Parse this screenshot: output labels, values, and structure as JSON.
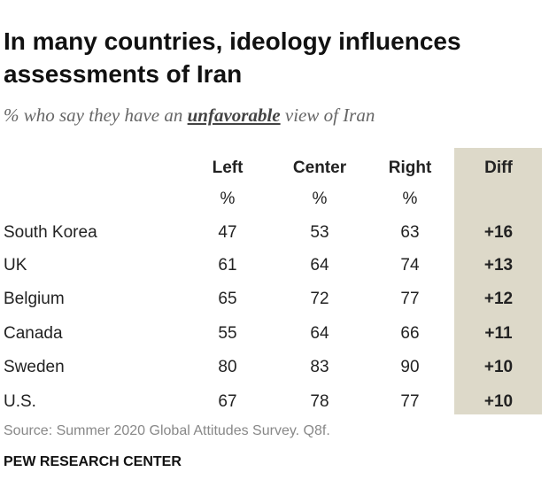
{
  "header": {
    "title": "In many countries, ideology influences assessments of Iran",
    "subtitle": {
      "before": "% who say they have an",
      "emphasis": "unfavorable",
      "after": "view of Iran"
    }
  },
  "table": {
    "columns": [
      "Left",
      "Center",
      "Right",
      "Diff"
    ],
    "units": [
      "%",
      "%",
      "%"
    ],
    "rows": [
      [
        "South Korea",
        47,
        53,
        63,
        "+16"
      ],
      [
        "UK",
        61,
        64,
        74,
        "+13"
      ],
      [
        "Belgium",
        65,
        72,
        77,
        "+12"
      ],
      [
        "Canada",
        55,
        64,
        66,
        "+11"
      ],
      [
        "Sweden",
        80,
        83,
        90,
        "+10"
      ],
      [
        "U.S.",
        67,
        78,
        77,
        "+10"
      ]
    ]
  },
  "footer": {
    "source": "Source: Summer 2020 Global Attitudes Survey. Q8f.",
    "brand": "PEW RESEARCH CENTER"
  }
}
